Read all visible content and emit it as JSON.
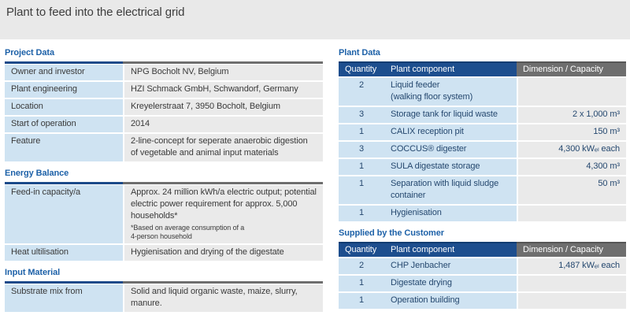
{
  "page": {
    "title": "Plant to feed into the electrical grid"
  },
  "colors": {
    "accent_blue": "#1d61a8",
    "header_navy": "#1d4e8e",
    "header_gray": "#6e6e6e",
    "cell_blue": "#cfe3f2",
    "cell_gray": "#eaeaea",
    "title_band_gray": "#e9e9e9"
  },
  "left_tables": [
    {
      "heading": "Project Data",
      "rows": [
        {
          "label": "Owner and investor",
          "value": "NPG Bocholt NV, Belgium"
        },
        {
          "label": "Plant engineering",
          "value": "HZI Schmack GmbH, Schwandorf, Germany"
        },
        {
          "label": "Location",
          "value": "Kreyelerstraat 7, 3950 Bocholt, Belgium"
        },
        {
          "label": "Start of operation",
          "value": "2014"
        },
        {
          "label": "Feature",
          "value": "2-line-concept for seperate anaerobic digestion of vegetable and animal input materials"
        }
      ]
    },
    {
      "heading": "Energy Balance",
      "rows": [
        {
          "label": "Feed-in capacity/a",
          "value": "Approx. 24 million kWh/a electric output; potential electric power requirement for approx. 5,000 households*",
          "note": "*Based on average consumption of a\n 4-person household"
        },
        {
          "label": "Heat ultilisation",
          "value": "Hygienisation and drying of the digestate"
        }
      ]
    },
    {
      "heading": "Input Material",
      "rows": [
        {
          "label": "Substrate mix from",
          "value": "Solid and liquid organic waste, maize, slurry, manure."
        }
      ]
    }
  ],
  "right_tables": [
    {
      "heading": "Plant Data",
      "columns": [
        "Quantity",
        "Plant component",
        "Dimension / Capacity"
      ],
      "rows": [
        {
          "quantity": "2",
          "component": "Liquid feeder\n(walking floor system)",
          "dimension": ""
        },
        {
          "quantity": "3",
          "component": "Storage tank for liquid waste",
          "dimension": "2 x 1,000 m³"
        },
        {
          "quantity": "1",
          "component": "CALIX reception pit",
          "dimension": "150 m³"
        },
        {
          "quantity": "3",
          "component": "COCCUS® digester",
          "dimension": "4,300 kWₑₗ each"
        },
        {
          "quantity": "1",
          "component": "SULA digestate storage",
          "dimension": "4,300 m³"
        },
        {
          "quantity": "1",
          "component": "Separation with liquid sludge container",
          "dimension": "50 m³"
        },
        {
          "quantity": "1",
          "component": "Hygienisation",
          "dimension": ""
        }
      ]
    },
    {
      "heading": "Supplied by the Customer",
      "columns": [
        "Quantity",
        "Plant component",
        "Dimension / Capacity"
      ],
      "rows": [
        {
          "quantity": "2",
          "component": "CHP Jenbacher",
          "dimension": "1,487 kWₑₗ each"
        },
        {
          "quantity": "1",
          "component": "Digestate drying",
          "dimension": ""
        },
        {
          "quantity": "1",
          "component": "Operation building",
          "dimension": ""
        }
      ]
    }
  ]
}
